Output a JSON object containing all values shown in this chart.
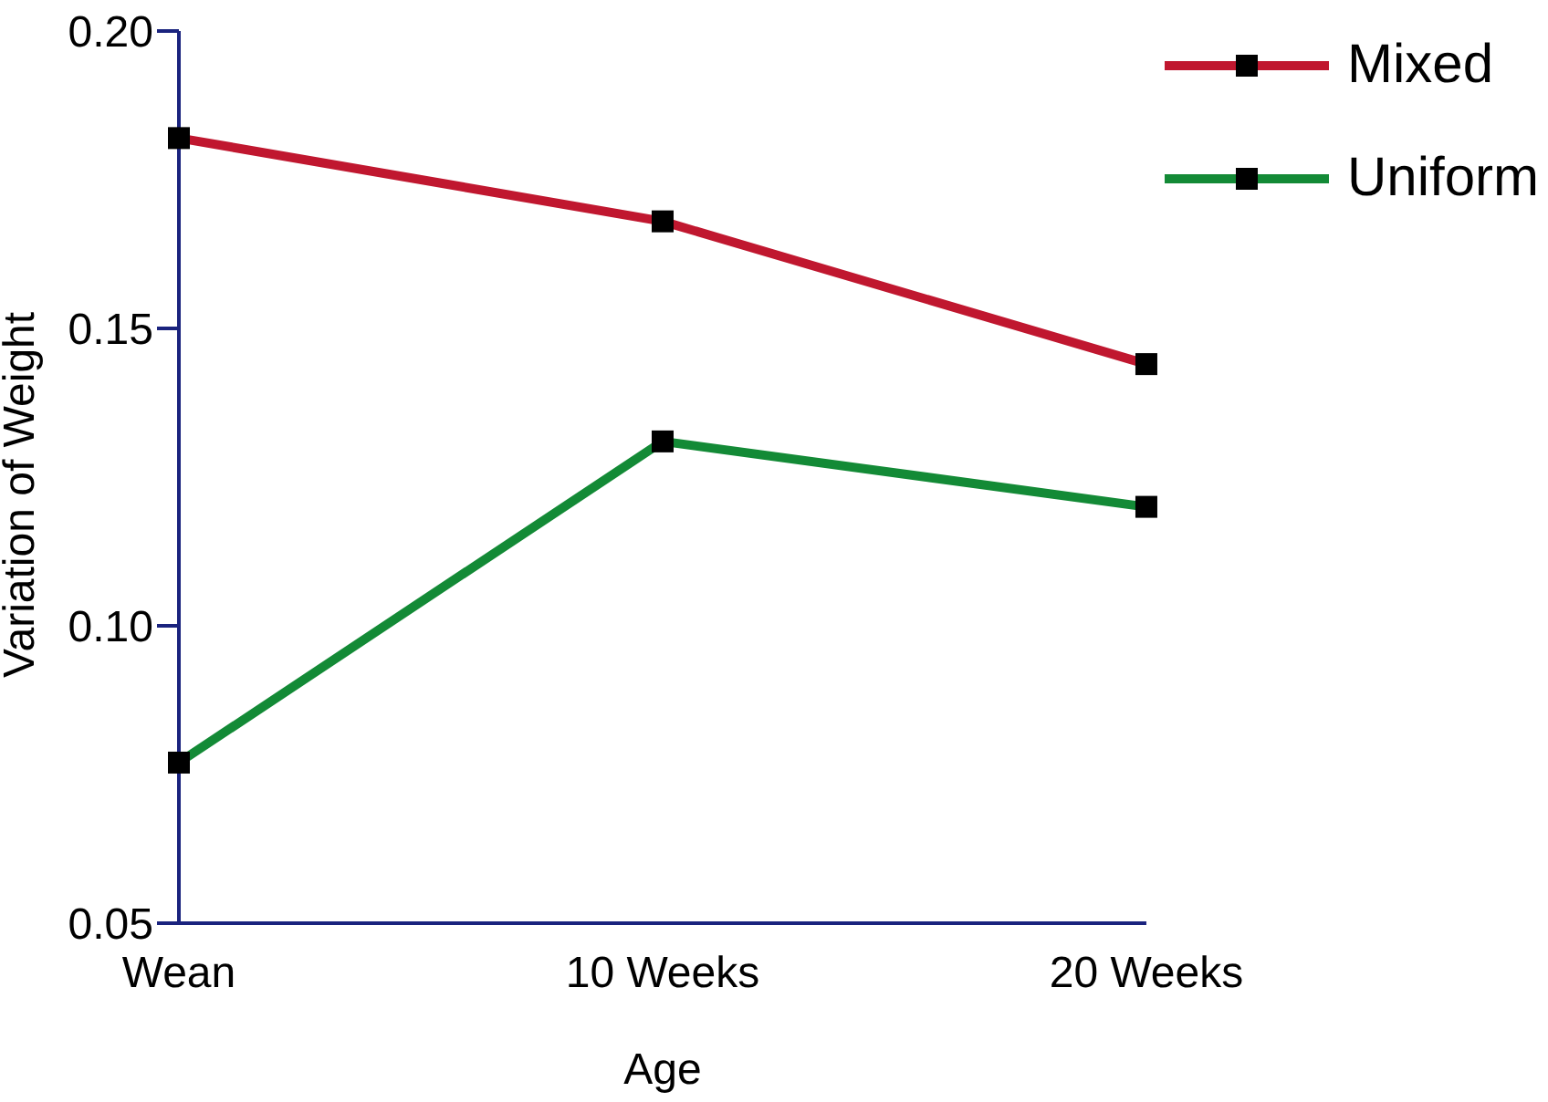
{
  "chart_data": {
    "type": "line",
    "xlabel": "Age",
    "ylabel": "Variation of Weight",
    "categories": [
      "Wean",
      "10 Weeks",
      "20 Weeks"
    ],
    "series": [
      {
        "name": "Mixed",
        "color": "#c0172f",
        "values": [
          0.182,
          0.168,
          0.144
        ]
      },
      {
        "name": "Uniform",
        "color": "#138a36",
        "values": [
          0.077,
          0.131,
          0.12
        ]
      }
    ],
    "ylim": [
      0.05,
      0.2
    ],
    "yticks": [
      {
        "value": 0.05,
        "label": "0.05"
      },
      {
        "value": 0.1,
        "label": "0.10"
      },
      {
        "value": 0.15,
        "label": "0.15"
      },
      {
        "value": 0.2,
        "label": "0.20"
      }
    ],
    "grid": false,
    "legend": "top right",
    "marker": "square",
    "line_style": "solid"
  }
}
